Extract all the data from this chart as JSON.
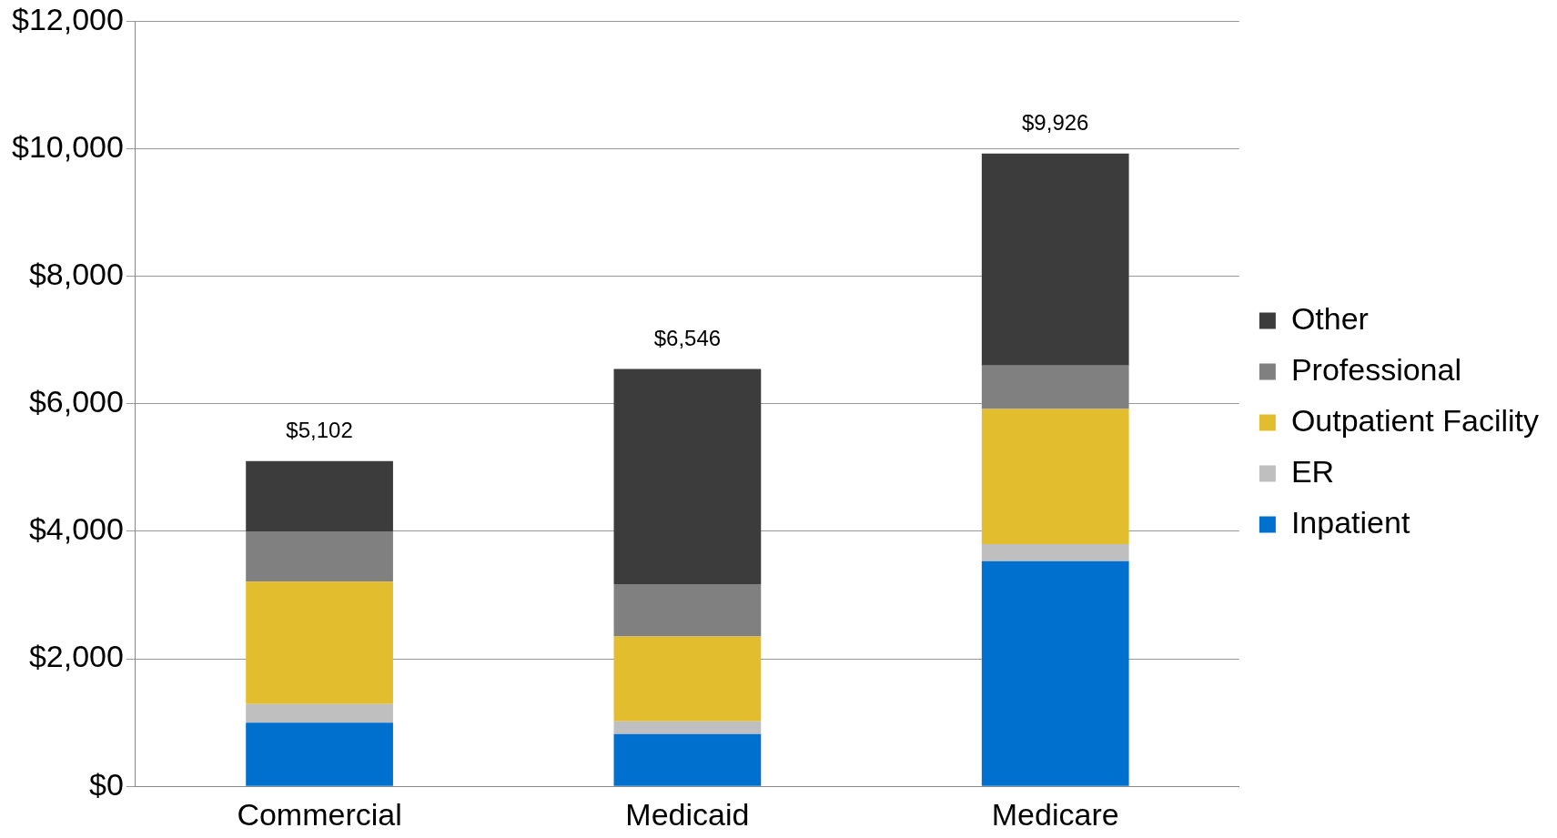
{
  "chart_data": {
    "type": "bar",
    "stacked": true,
    "categories": [
      "Commercial",
      "Medicaid",
      "Medicare"
    ],
    "series": [
      {
        "name": "Inpatient",
        "color": "#0070cf",
        "values": [
          1000,
          820,
          3530
        ]
      },
      {
        "name": "ER",
        "color": "#bfbfbf",
        "values": [
          290,
          200,
          270
        ]
      },
      {
        "name": "Outpatient Facility",
        "color": "#e2bd2e",
        "values": [
          1920,
          1330,
          2120
        ]
      },
      {
        "name": "Professional",
        "color": "#808080",
        "values": [
          790,
          820,
          680
        ]
      },
      {
        "name": "Other",
        "color": "#3c3c3c",
        "values": [
          1102,
          3376,
          3326
        ]
      }
    ],
    "ylim": [
      0,
      12000
    ],
    "yticks": [
      {
        "value": 0,
        "label": "$0"
      },
      {
        "value": 2000,
        "label": "$2,000"
      },
      {
        "value": 4000,
        "label": "$4,000"
      },
      {
        "value": 6000,
        "label": "$6,000"
      },
      {
        "value": 8000,
        "label": "$8,000"
      },
      {
        "value": 10000,
        "label": "$10,000"
      },
      {
        "value": 12000,
        "label": "$12,000"
      }
    ],
    "totals": [
      "$5,102",
      "$6,546",
      "$9,926"
    ],
    "grid": "y",
    "legend": "right"
  }
}
